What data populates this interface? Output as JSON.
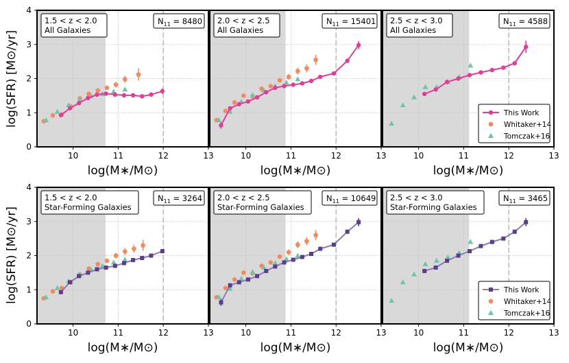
{
  "figure": {
    "ylabel": "log(SFR) [M⊙/yr]",
    "xlabel": "log(M∗/M⊙)",
    "xticks": [
      "10",
      "11",
      "12",
      "13"
    ],
    "yticks": [
      "0",
      "1",
      "2",
      "3",
      "4"
    ]
  },
  "colors": {
    "this_work_all": "#e33b96",
    "this_work_sf": "#5a3d8c",
    "this_work_sf_line": "#8a7ab5",
    "whitaker": "#f4895e",
    "tomczak": "#6cc7a8",
    "shade": "#d9d9d9",
    "cutoff_line": "#b0b0b0"
  },
  "legend": {
    "this_work": "This Work",
    "whitaker": "Whitaker+14",
    "tomczak": "Tomczak+16"
  },
  "chart_data": [
    {
      "type": "scatter",
      "row": 0,
      "col": 0,
      "title_line1": "1.5 < z < 2.0",
      "title_line2": "All Galaxies",
      "n_label": "8480",
      "xlim": [
        9.2,
        13.0
      ],
      "ylim": [
        0,
        4
      ],
      "shade_max": 10.72,
      "cutoff": 12.0,
      "this_work": {
        "x": [
          9.73,
          9.93,
          10.13,
          10.33,
          10.53,
          10.73,
          10.93,
          11.13,
          11.33,
          11.53,
          11.73,
          11.98
        ],
        "y": [
          0.93,
          1.13,
          1.28,
          1.43,
          1.53,
          1.56,
          1.53,
          1.51,
          1.51,
          1.48,
          1.53,
          1.63
        ],
        "err": [
          0.05,
          0.03,
          0.03,
          0.03,
          0.03,
          0.03,
          0.03,
          0.03,
          0.03,
          0.03,
          0.05,
          0.08
        ]
      },
      "whitaker": {
        "x": [
          9.35,
          9.55,
          9.75,
          9.95,
          10.15,
          10.35,
          10.55,
          10.75,
          10.95,
          11.15,
          11.45
        ],
        "y": [
          0.75,
          0.92,
          0.95,
          1.18,
          1.42,
          1.55,
          1.65,
          1.73,
          1.82,
          1.98,
          2.12
        ],
        "err": [
          0.03,
          0.03,
          0.03,
          0.04,
          0.04,
          0.05,
          0.05,
          0.06,
          0.08,
          0.1,
          0.18
        ]
      },
      "tomczak": {
        "x": [
          9.4,
          9.65,
          9.9,
          10.15,
          10.4,
          10.65,
          10.9,
          11.15
        ],
        "y": [
          0.78,
          1.03,
          1.22,
          1.38,
          1.48,
          1.55,
          1.62,
          1.68
        ]
      }
    },
    {
      "type": "scatter",
      "row": 0,
      "col": 1,
      "title_line1": "2.0 < z < 2.5",
      "title_line2": "All Galaxies",
      "n_label": "15401",
      "xlim": [
        9.2,
        13.0
      ],
      "ylim": [
        0,
        4
      ],
      "shade_max": 10.88,
      "cutoff": 12.0,
      "this_work": {
        "x": [
          9.45,
          9.65,
          9.85,
          10.05,
          10.25,
          10.45,
          10.65,
          10.85,
          11.05,
          11.25,
          11.45,
          11.65,
          11.95,
          12.25,
          12.5
        ],
        "y": [
          0.63,
          1.13,
          1.25,
          1.33,
          1.45,
          1.6,
          1.73,
          1.78,
          1.82,
          1.86,
          1.93,
          2.05,
          2.15,
          2.52,
          2.98
        ],
        "err": [
          0.1,
          0.04,
          0.03,
          0.03,
          0.03,
          0.03,
          0.03,
          0.03,
          0.03,
          0.03,
          0.03,
          0.03,
          0.04,
          0.06,
          0.12
        ]
      },
      "whitaker": {
        "x": [
          9.35,
          9.55,
          9.75,
          9.95,
          10.15,
          10.35,
          10.55,
          10.75,
          10.95,
          11.15,
          11.35,
          11.55
        ],
        "y": [
          0.78,
          1.05,
          1.3,
          1.5,
          1.48,
          1.7,
          1.78,
          1.95,
          2.05,
          2.22,
          2.3,
          2.55
        ],
        "err": [
          0.03,
          0.03,
          0.04,
          0.04,
          0.04,
          0.05,
          0.05,
          0.06,
          0.08,
          0.1,
          0.12,
          0.15
        ]
      },
      "tomczak": {
        "x": [
          9.4,
          9.65,
          9.9,
          10.15,
          10.4,
          10.65,
          10.9,
          11.15
        ],
        "y": [
          0.78,
          1.03,
          1.32,
          1.52,
          1.65,
          1.78,
          1.88,
          1.98
        ]
      }
    },
    {
      "type": "scatter",
      "row": 0,
      "col": 2,
      "title_line1": "2.5 < z < 3.0",
      "title_line2": "All Galaxies",
      "n_label": "4588",
      "xlim": [
        9.2,
        13.0
      ],
      "ylim": [
        0,
        4
      ],
      "shade_max": 11.12,
      "cutoff": 12.0,
      "this_work": {
        "x": [
          10.13,
          10.38,
          10.63,
          10.88,
          11.13,
          11.38,
          11.63,
          11.88,
          12.13,
          12.38
        ],
        "y": [
          1.55,
          1.68,
          1.9,
          2.0,
          2.1,
          2.18,
          2.25,
          2.32,
          2.45,
          2.93
        ],
        "err": [
          0.04,
          0.03,
          0.03,
          0.03,
          0.03,
          0.03,
          0.03,
          0.04,
          0.06,
          0.18
        ]
      },
      "whitaker": {
        "x": [],
        "y": [],
        "err": []
      },
      "tomczak": {
        "x": [
          9.4,
          9.65,
          9.9,
          10.15,
          10.4,
          10.65,
          10.9,
          11.15
        ],
        "y": [
          0.68,
          1.22,
          1.45,
          1.75,
          1.75,
          1.9,
          2.05,
          2.38
        ]
      },
      "show_legend": true
    },
    {
      "type": "scatter",
      "row": 1,
      "col": 0,
      "title_line1": "1.5 < z < 2.0",
      "title_line2": "Star-Forming Galaxies",
      "n_label": "3264",
      "xlim": [
        9.2,
        13.0
      ],
      "ylim": [
        0,
        4
      ],
      "shade_max": 10.72,
      "cutoff": 12.0,
      "this_work": {
        "x": [
          9.73,
          9.93,
          10.13,
          10.33,
          10.53,
          10.73,
          10.93,
          11.13,
          11.33,
          11.53,
          11.73,
          11.98
        ],
        "y": [
          0.93,
          1.22,
          1.4,
          1.5,
          1.6,
          1.65,
          1.7,
          1.78,
          1.87,
          1.93,
          2.0,
          2.13
        ],
        "err": [
          0.04,
          0.03,
          0.03,
          0.03,
          0.03,
          0.03,
          0.03,
          0.03,
          0.03,
          0.03,
          0.04,
          0.06
        ]
      },
      "whitaker": {
        "x": [
          9.35,
          9.55,
          9.75,
          9.95,
          10.15,
          10.35,
          10.55,
          10.75,
          10.95,
          11.15,
          11.35,
          11.55
        ],
        "y": [
          0.75,
          0.95,
          1.05,
          1.22,
          1.45,
          1.62,
          1.75,
          1.85,
          2.0,
          2.12,
          2.2,
          2.3
        ],
        "err": [
          0.03,
          0.03,
          0.03,
          0.04,
          0.04,
          0.05,
          0.05,
          0.06,
          0.08,
          0.1,
          0.12,
          0.16
        ]
      },
      "tomczak": {
        "x": [
          9.4,
          9.65,
          9.9,
          10.15,
          10.4,
          10.65,
          10.9,
          11.15
        ],
        "y": [
          0.78,
          1.05,
          1.25,
          1.45,
          1.58,
          1.7,
          1.8,
          1.88
        ]
      }
    },
    {
      "type": "scatter",
      "row": 1,
      "col": 1,
      "title_line1": "2.0 < z < 2.5",
      "title_line2": "Star-Forming Galaxies",
      "n_label": "10649",
      "xlim": [
        9.2,
        13.0
      ],
      "ylim": [
        0,
        4
      ],
      "shade_max": 10.88,
      "cutoff": 12.0,
      "this_work": {
        "x": [
          9.45,
          9.65,
          9.85,
          10.05,
          10.25,
          10.45,
          10.65,
          10.85,
          11.05,
          11.25,
          11.45,
          11.65,
          11.95,
          12.25,
          12.5
        ],
        "y": [
          0.63,
          1.13,
          1.22,
          1.3,
          1.4,
          1.55,
          1.68,
          1.8,
          1.88,
          1.96,
          2.05,
          2.2,
          2.32,
          2.7,
          2.98
        ],
        "err": [
          0.1,
          0.04,
          0.03,
          0.03,
          0.03,
          0.03,
          0.03,
          0.03,
          0.03,
          0.03,
          0.03,
          0.03,
          0.04,
          0.06,
          0.12
        ]
      },
      "whitaker": {
        "x": [
          9.35,
          9.55,
          9.75,
          9.95,
          10.15,
          10.35,
          10.55,
          10.75,
          10.95,
          11.15,
          11.35,
          11.55
        ],
        "y": [
          0.78,
          1.05,
          1.3,
          1.5,
          1.48,
          1.7,
          1.8,
          1.97,
          2.1,
          2.32,
          2.42,
          2.6
        ],
        "err": [
          0.03,
          0.03,
          0.04,
          0.04,
          0.04,
          0.05,
          0.05,
          0.06,
          0.08,
          0.1,
          0.12,
          0.15
        ]
      },
      "tomczak": {
        "x": [
          9.4,
          9.65,
          9.9,
          10.15,
          10.4,
          10.65,
          10.9,
          11.15
        ],
        "y": [
          0.78,
          1.03,
          1.32,
          1.52,
          1.65,
          1.78,
          1.9,
          2.0
        ]
      }
    },
    {
      "type": "scatter",
      "row": 1,
      "col": 2,
      "title_line1": "2.5 < z < 3.0",
      "title_line2": "Star-Forming Galaxies",
      "n_label": "3465",
      "xlim": [
        9.2,
        13.0
      ],
      "ylim": [
        0,
        4
      ],
      "shade_max": 11.12,
      "cutoff": 12.0,
      "this_work": {
        "x": [
          10.13,
          10.38,
          10.63,
          10.88,
          11.13,
          11.38,
          11.63,
          11.88,
          12.13,
          12.38
        ],
        "y": [
          1.55,
          1.65,
          1.85,
          2.0,
          2.13,
          2.28,
          2.4,
          2.5,
          2.7,
          2.98
        ],
        "err": [
          0.04,
          0.03,
          0.03,
          0.03,
          0.03,
          0.03,
          0.03,
          0.04,
          0.06,
          0.12
        ]
      },
      "whitaker": {
        "x": [],
        "y": [],
        "err": []
      },
      "tomczak": {
        "x": [
          9.4,
          9.65,
          9.9,
          10.15,
          10.4,
          10.65,
          10.9,
          11.15
        ],
        "y": [
          0.68,
          1.22,
          1.45,
          1.75,
          1.85,
          1.95,
          2.08,
          2.4
        ]
      },
      "show_legend": true
    }
  ]
}
